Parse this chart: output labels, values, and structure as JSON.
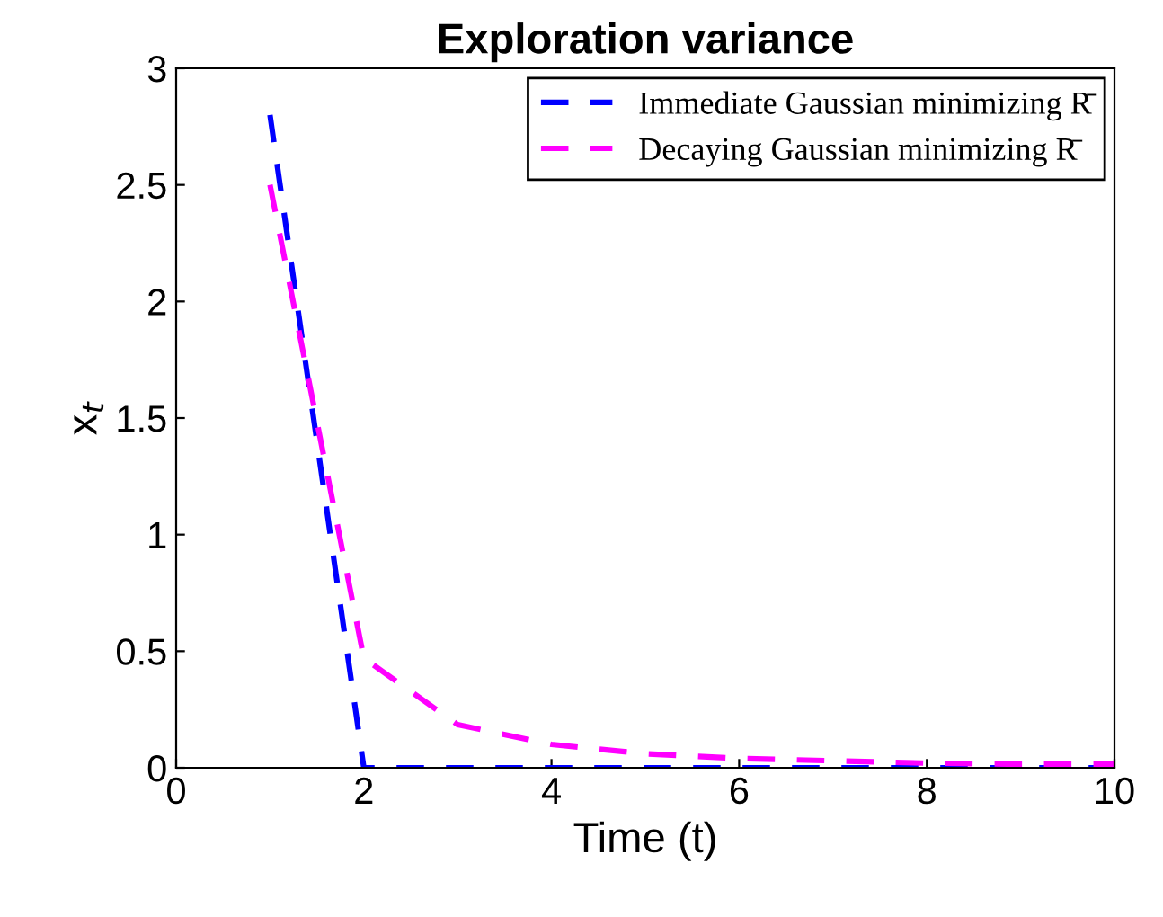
{
  "chart_data": {
    "type": "line",
    "title": "Exploration variance",
    "xlabel": "Time (t)",
    "ylabel": "x$_{t}$",
    "x": [
      1,
      2,
      3,
      4,
      5,
      6,
      7,
      8,
      9,
      10
    ],
    "series": [
      {
        "name": "Immediate Gaussian minimizing R̄",
        "color": "#0000ff",
        "values": [
          2.8,
          0,
          0,
          0,
          0,
          0,
          0,
          0,
          0,
          0
        ]
      },
      {
        "name": "Decaying Gaussian minimizing R̄",
        "color": "#ff00ff",
        "values": [
          2.5,
          0.47,
          0.185,
          0.1,
          0.06,
          0.04,
          0.03,
          0.02,
          0.015,
          0.015
        ]
      }
    ],
    "xlim": [
      0,
      10
    ],
    "ylim": [
      0,
      3
    ],
    "xticks": [
      0,
      2,
      4,
      6,
      8,
      10
    ],
    "yticks": [
      0,
      0.5,
      1,
      1.5,
      2,
      2.5,
      3
    ],
    "grid": false,
    "legend": "top right",
    "line_style": "dashed",
    "marker": "none"
  }
}
